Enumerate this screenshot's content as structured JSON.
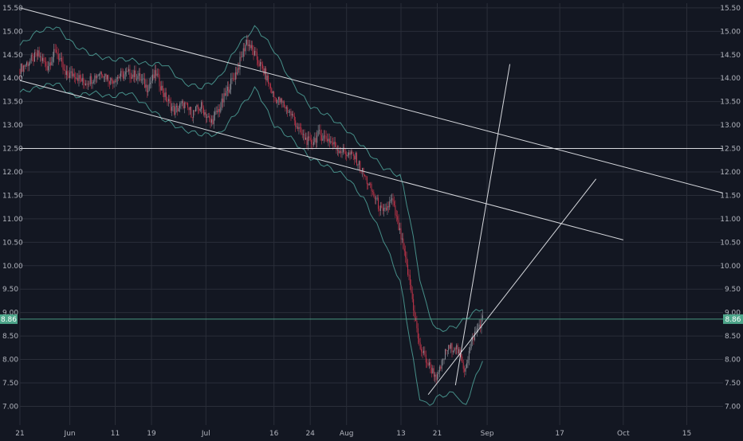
{
  "chart_data": {
    "type": "candlestick",
    "title": "",
    "xlabel": "",
    "ylabel": "",
    "ylim": [
      6.6,
      15.6
    ],
    "y_ticks": [
      "7.00",
      "7.50",
      "8.00",
      "8.50",
      "9.00",
      "9.50",
      "10.00",
      "10.50",
      "11.00",
      "11.50",
      "12.00",
      "12.50",
      "13.00",
      "13.50",
      "14.00",
      "14.50",
      "15.00",
      "15.50"
    ],
    "x_range": [
      "2018-05-21",
      "2018-10-23"
    ],
    "x_ticks": [
      {
        "date": "2018-05-21",
        "label": "21"
      },
      {
        "date": "2018-06-01",
        "label": "Jun"
      },
      {
        "date": "2018-06-11",
        "label": "11"
      },
      {
        "date": "2018-06-19",
        "label": "19"
      },
      {
        "date": "2018-07-01",
        "label": "Jul"
      },
      {
        "date": "2018-07-16",
        "label": "16"
      },
      {
        "date": "2018-07-24",
        "label": "24"
      },
      {
        "date": "2018-08-01",
        "label": "Aug"
      },
      {
        "date": "2018-08-13",
        "label": "13"
      },
      {
        "date": "2018-08-21",
        "label": "21"
      },
      {
        "date": "2018-09-01",
        "label": "Sep"
      },
      {
        "date": "2018-09-17",
        "label": "17"
      },
      {
        "date": "2018-10-01",
        "label": "Oct"
      },
      {
        "date": "2018-10-15",
        "label": "15"
      }
    ],
    "current_price": {
      "label": "8.86",
      "value": 8.86,
      "color": "#4da58a"
    },
    "grid": true,
    "colors": {
      "background": "#131722",
      "grid": "#2a2e39",
      "up": "#8a8d96",
      "down": "#c2354a",
      "band": "#4fa39a",
      "trendline": "#d7d9de",
      "axis_text": "#b2b5be"
    },
    "series": [
      {
        "name": "",
        "kind": "close",
        "points": [
          [
            "2018-05-21",
            14.2
          ],
          [
            "2018-05-23",
            14.35
          ],
          [
            "2018-05-25",
            14.5
          ],
          [
            "2018-05-27",
            14.25
          ],
          [
            "2018-05-29",
            14.6
          ],
          [
            "2018-05-31",
            14.05
          ],
          [
            "2018-06-02",
            14.1
          ],
          [
            "2018-06-04",
            13.9
          ],
          [
            "2018-06-06",
            14.0
          ],
          [
            "2018-06-08",
            14.15
          ],
          [
            "2018-06-10",
            13.95
          ],
          [
            "2018-06-12",
            14.05
          ],
          [
            "2018-06-14",
            14.1
          ],
          [
            "2018-06-16",
            14.05
          ],
          [
            "2018-06-18",
            13.8
          ],
          [
            "2018-06-20",
            14.1
          ],
          [
            "2018-06-22",
            13.6
          ],
          [
            "2018-06-24",
            13.3
          ],
          [
            "2018-06-26",
            13.45
          ],
          [
            "2018-06-28",
            13.25
          ],
          [
            "2018-06-30",
            13.4
          ],
          [
            "2018-07-02",
            13.05
          ],
          [
            "2018-07-04",
            13.35
          ],
          [
            "2018-07-06",
            13.8
          ],
          [
            "2018-07-08",
            14.2
          ],
          [
            "2018-07-10",
            14.8
          ],
          [
            "2018-07-12",
            14.45
          ],
          [
            "2018-07-14",
            14.1
          ],
          [
            "2018-07-16",
            13.6
          ],
          [
            "2018-07-18",
            13.45
          ],
          [
            "2018-07-20",
            13.2
          ],
          [
            "2018-07-22",
            12.8
          ],
          [
            "2018-07-24",
            12.6
          ],
          [
            "2018-07-26",
            12.8
          ],
          [
            "2018-07-28",
            12.7
          ],
          [
            "2018-07-30",
            12.5
          ],
          [
            "2018-08-01",
            12.4
          ],
          [
            "2018-08-03",
            12.3
          ],
          [
            "2018-08-05",
            11.9
          ],
          [
            "2018-08-07",
            11.5
          ],
          [
            "2018-08-09",
            11.1
          ],
          [
            "2018-08-11",
            11.4
          ],
          [
            "2018-08-13",
            10.6
          ],
          [
            "2018-08-15",
            9.6
          ],
          [
            "2018-08-17",
            8.3
          ],
          [
            "2018-08-19",
            7.9
          ],
          [
            "2018-08-21",
            7.6
          ],
          [
            "2018-08-23",
            8.2
          ],
          [
            "2018-08-25",
            8.3
          ],
          [
            "2018-08-27",
            7.8
          ],
          [
            "2018-08-29",
            8.5
          ],
          [
            "2018-08-31",
            8.86
          ]
        ]
      },
      {
        "name": "",
        "kind": "upper_band",
        "points": [
          [
            "2018-05-21",
            14.7
          ],
          [
            "2018-05-25",
            15.0
          ],
          [
            "2018-05-29",
            15.1
          ],
          [
            "2018-06-02",
            14.7
          ],
          [
            "2018-06-06",
            14.5
          ],
          [
            "2018-06-10",
            14.4
          ],
          [
            "2018-06-14",
            14.4
          ],
          [
            "2018-06-18",
            14.3
          ],
          [
            "2018-06-22",
            14.3
          ],
          [
            "2018-06-26",
            13.9
          ],
          [
            "2018-06-30",
            13.8
          ],
          [
            "2018-07-04",
            14.0
          ],
          [
            "2018-07-08",
            14.7
          ],
          [
            "2018-07-12",
            15.1
          ],
          [
            "2018-07-16",
            14.6
          ],
          [
            "2018-07-20",
            13.9
          ],
          [
            "2018-07-24",
            13.4
          ],
          [
            "2018-07-28",
            13.2
          ],
          [
            "2018-08-01",
            12.9
          ],
          [
            "2018-08-05",
            12.5
          ],
          [
            "2018-08-09",
            12.1
          ],
          [
            "2018-08-13",
            11.9
          ],
          [
            "2018-08-15",
            11.0
          ],
          [
            "2018-08-17",
            9.8
          ],
          [
            "2018-08-19",
            9.0
          ],
          [
            "2018-08-21",
            8.6
          ],
          [
            "2018-08-25",
            8.7
          ],
          [
            "2018-08-29",
            9.0
          ],
          [
            "2018-08-31",
            9.1
          ]
        ]
      },
      {
        "name": "",
        "kind": "lower_band",
        "points": [
          [
            "2018-05-21",
            13.7
          ],
          [
            "2018-05-25",
            13.8
          ],
          [
            "2018-05-29",
            13.9
          ],
          [
            "2018-06-02",
            13.6
          ],
          [
            "2018-06-06",
            13.7
          ],
          [
            "2018-06-10",
            13.6
          ],
          [
            "2018-06-14",
            13.7
          ],
          [
            "2018-06-18",
            13.4
          ],
          [
            "2018-06-22",
            13.1
          ],
          [
            "2018-06-26",
            12.9
          ],
          [
            "2018-06-30",
            12.8
          ],
          [
            "2018-07-04",
            12.8
          ],
          [
            "2018-07-08",
            13.3
          ],
          [
            "2018-07-12",
            13.8
          ],
          [
            "2018-07-16",
            13.0
          ],
          [
            "2018-07-20",
            12.7
          ],
          [
            "2018-07-24",
            12.3
          ],
          [
            "2018-07-28",
            12.1
          ],
          [
            "2018-08-01",
            11.9
          ],
          [
            "2018-08-05",
            11.4
          ],
          [
            "2018-08-09",
            10.6
          ],
          [
            "2018-08-13",
            9.6
          ],
          [
            "2018-08-15",
            8.4
          ],
          [
            "2018-08-17",
            7.2
          ],
          [
            "2018-08-19",
            7.0
          ],
          [
            "2018-08-21",
            7.2
          ],
          [
            "2018-08-25",
            7.3
          ],
          [
            "2018-08-27",
            6.95
          ],
          [
            "2018-08-29",
            7.5
          ],
          [
            "2018-08-31",
            8.0
          ]
        ]
      }
    ],
    "trendlines": [
      {
        "from": [
          "2018-05-21",
          15.5
        ],
        "to": [
          "2018-10-23",
          11.55
        ]
      },
      {
        "from": [
          "2018-05-21",
          13.95
        ],
        "to": [
          "2018-10-01",
          10.55
        ]
      },
      {
        "from": [
          "2018-05-21",
          12.5
        ],
        "to": [
          "2018-10-23",
          12.5
        ]
      },
      {
        "from": [
          "2018-08-19",
          7.25
        ],
        "to": [
          "2018-09-25",
          11.85
        ]
      },
      {
        "from": [
          "2018-08-25",
          7.45
        ],
        "to": [
          "2018-09-06",
          14.3
        ]
      }
    ]
  }
}
